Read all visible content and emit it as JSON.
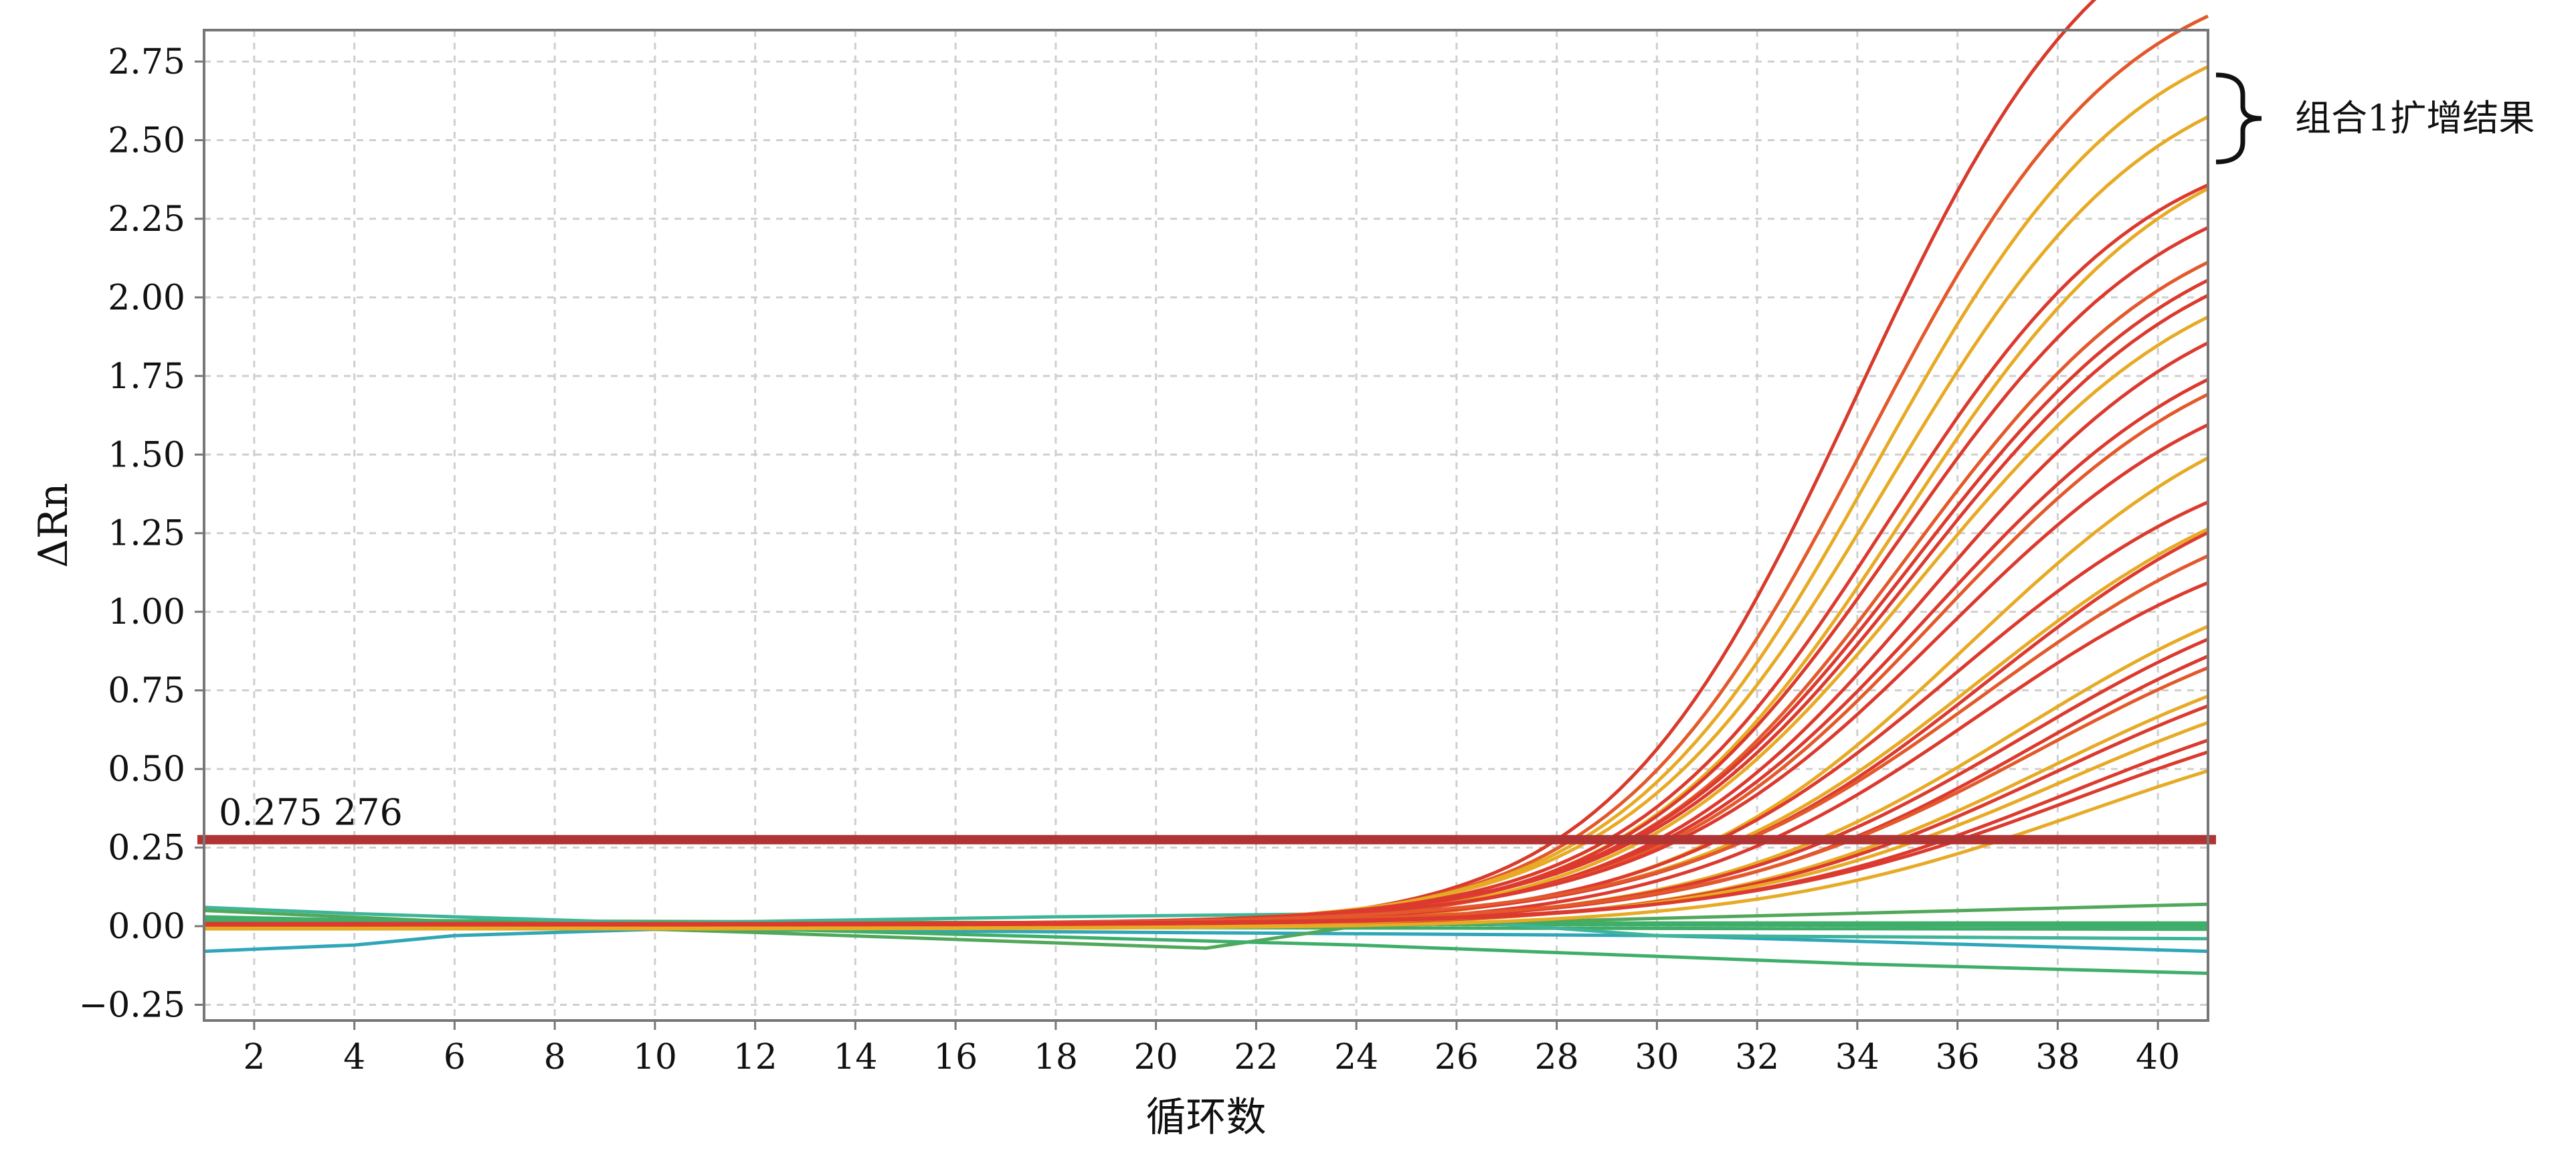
{
  "chart_data": {
    "type": "line",
    "xlabel": "循环数",
    "ylabel": "ΔRn",
    "xlim": [
      1,
      41
    ],
    "ylim": [
      -0.3,
      2.85
    ],
    "x_ticks": [
      "2",
      "4",
      "6",
      "8",
      "10",
      "12",
      "14",
      "16",
      "18",
      "20",
      "22",
      "24",
      "26",
      "28",
      "30",
      "32",
      "34",
      "36",
      "38",
      "40"
    ],
    "y_ticks": [
      "−0.25",
      "0.00",
      "0.25",
      "0.50",
      "0.75",
      "1.00",
      "1.25",
      "1.50",
      "1.75",
      "2.00",
      "2.25",
      "2.50",
      "2.75"
    ],
    "grid": true,
    "threshold": {
      "value": 0.275276,
      "label": "0.275 276",
      "color": "#b03434"
    },
    "annotation": {
      "text": "组合1扩增结果"
    },
    "amplification_curves": [
      {
        "color": "#d83a2c",
        "plateau": 3.4,
        "midpoint": 34.0,
        "slope": 2.5
      },
      {
        "color": "#e3592b",
        "plateau": 3.1,
        "midpoint": 34.2,
        "slope": 2.55
      },
      {
        "color": "#e7aa25",
        "plateau": 2.95,
        "midpoint": 34.4,
        "slope": 2.6
      },
      {
        "color": "#e7aa25",
        "plateau": 2.8,
        "midpoint": 34.6,
        "slope": 2.65
      },
      {
        "color": "#dc3a2e",
        "plateau": 2.55,
        "midpoint": 34.6,
        "slope": 2.6
      },
      {
        "color": "#e7aa25",
        "plateau": 2.6,
        "midpoint": 34.9,
        "slope": 2.7
      },
      {
        "color": "#dc3a2e",
        "plateau": 2.45,
        "midpoint": 34.8,
        "slope": 2.7
      },
      {
        "color": "#e3592b",
        "plateau": 2.35,
        "midpoint": 35.0,
        "slope": 2.75
      },
      {
        "color": "#dc3a2e",
        "plateau": 2.3,
        "midpoint": 35.1,
        "slope": 2.8
      },
      {
        "color": "#dc3a2e",
        "plateau": 2.25,
        "midpoint": 35.2,
        "slope": 2.8
      },
      {
        "color": "#e7aa25",
        "plateau": 2.2,
        "midpoint": 35.2,
        "slope": 2.85
      },
      {
        "color": "#dc3a2e",
        "plateau": 2.12,
        "midpoint": 35.4,
        "slope": 2.85
      },
      {
        "color": "#dc3a2e",
        "plateau": 2.0,
        "midpoint": 35.5,
        "slope": 2.9
      },
      {
        "color": "#e3592b",
        "plateau": 1.95,
        "midpoint": 35.6,
        "slope": 2.9
      },
      {
        "color": "#dc3a2e",
        "plateau": 1.85,
        "midpoint": 35.7,
        "slope": 2.95
      },
      {
        "color": "#e7aa25",
        "plateau": 1.8,
        "midpoint": 36.2,
        "slope": 3.0
      },
      {
        "color": "#dc3a2e",
        "plateau": 1.6,
        "midpoint": 35.9,
        "slope": 3.0
      },
      {
        "color": "#e7aa25",
        "plateau": 1.55,
        "midpoint": 36.4,
        "slope": 3.1
      },
      {
        "color": "#dc3a2e",
        "plateau": 1.55,
        "midpoint": 36.6,
        "slope": 3.1
      },
      {
        "color": "#e3592b",
        "plateau": 1.45,
        "midpoint": 36.5,
        "slope": 3.15
      },
      {
        "color": "#dc3a2e",
        "plateau": 1.35,
        "midpoint": 36.4,
        "slope": 3.1
      },
      {
        "color": "#e7aa25",
        "plateau": 1.25,
        "midpoint": 37.2,
        "slope": 3.2
      },
      {
        "color": "#dc3a2e",
        "plateau": 1.2,
        "midpoint": 37.3,
        "slope": 3.2
      },
      {
        "color": "#dc3a2e",
        "plateau": 1.15,
        "midpoint": 37.6,
        "slope": 3.2
      },
      {
        "color": "#e3592b",
        "plateau": 1.1,
        "midpoint": 37.6,
        "slope": 3.25
      },
      {
        "color": "#e7aa25",
        "plateau": 1.02,
        "midpoint": 37.8,
        "slope": 3.3
      },
      {
        "color": "#dc3a2e",
        "plateau": 0.98,
        "midpoint": 37.9,
        "slope": 3.3
      },
      {
        "color": "#e7aa25",
        "plateau": 0.92,
        "midpoint": 38.1,
        "slope": 3.35
      },
      {
        "color": "#dc3a2e",
        "plateau": 0.85,
        "midpoint": 38.3,
        "slope": 3.35
      },
      {
        "color": "#dc3a2e",
        "plateau": 0.8,
        "midpoint": 38.4,
        "slope": 3.4
      },
      {
        "color": "#e7aa25",
        "plateau": 0.75,
        "midpoint": 38.6,
        "slope": 3.4
      }
    ],
    "baseline_curves": [
      {
        "color": "#3fae6a",
        "x": [
          1,
          41
        ],
        "y": [
          0.01,
          0.005
        ]
      },
      {
        "color": "#3fae6a",
        "x": [
          1,
          41
        ],
        "y": [
          0.015,
          0.0
        ]
      },
      {
        "color": "#3fae6a",
        "x": [
          1,
          41
        ],
        "y": [
          0.0,
          -0.01
        ]
      },
      {
        "color": "#3fae6a",
        "x": [
          1,
          20,
          41
        ],
        "y": [
          0.02,
          0.01,
          0.01
        ]
      },
      {
        "color": "#2fa7b8",
        "x": [
          1,
          4,
          6,
          10,
          30,
          41
        ],
        "y": [
          -0.08,
          -0.06,
          -0.03,
          -0.01,
          -0.03,
          -0.08
        ]
      },
      {
        "color": "#3fb598",
        "x": [
          1,
          4,
          10,
          18,
          24,
          30,
          41
        ],
        "y": [
          0.06,
          0.04,
          0.01,
          0.03,
          0.04,
          -0.03,
          -0.04
        ]
      },
      {
        "color": "#52a85a",
        "x": [
          1,
          8,
          12,
          21,
          24,
          41
        ],
        "y": [
          0.05,
          0.0,
          -0.02,
          -0.07,
          0.0,
          0.07
        ]
      },
      {
        "color": "#3fae6a",
        "x": [
          1,
          10,
          24,
          34,
          41
        ],
        "y": [
          0.03,
          0.0,
          -0.06,
          -0.12,
          -0.15
        ]
      }
    ]
  }
}
